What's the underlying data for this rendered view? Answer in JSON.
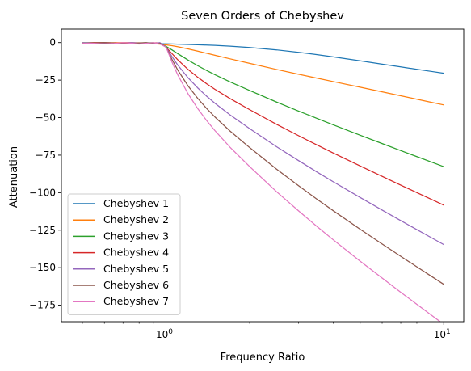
{
  "chart_data": {
    "type": "line",
    "title": "Seven Orders of Chebyshev",
    "xlabel": "Frequency Ratio",
    "ylabel": "Attenuation",
    "xscale": "log",
    "xlim": [
      0.42,
      11.8
    ],
    "ylim": [
      -186,
      9
    ],
    "x_major_ticks": [
      {
        "value": 1,
        "base": "10",
        "exp": "0"
      },
      {
        "value": 10,
        "base": "10",
        "exp": "1"
      }
    ],
    "x_minor_ticks": [
      0.5,
      0.6,
      0.7,
      0.8,
      0.9,
      2,
      3,
      4,
      5,
      6,
      7,
      8,
      9
    ],
    "y_ticks": [
      0,
      -25,
      -50,
      -75,
      -100,
      -125,
      -150,
      -175
    ],
    "y_tick_labels": [
      "0",
      "−25",
      "−50",
      "−75",
      "−100",
      "−125",
      "−150",
      "−175"
    ],
    "x": [
      0.5,
      0.55,
      0.6,
      0.65,
      0.7,
      0.75,
      0.8,
      0.85,
      0.9,
      0.95,
      1.0,
      1.05,
      1.1,
      1.2,
      1.3,
      1.4,
      1.5,
      1.7,
      2.0,
      2.5,
      3.0,
      3.5,
      4.0,
      5.0,
      6.0,
      7.0,
      8.0,
      9.0,
      10.0
    ],
    "series": [
      {
        "name": "Chebyshev 1",
        "color": "#1f77b4",
        "values": [
          -0.16,
          -0.22,
          -0.28,
          -0.34,
          -0.41,
          -0.48,
          -0.55,
          -0.62,
          -0.69,
          -0.77,
          -0.85,
          -0.93,
          -1.02,
          -1.2,
          -1.41,
          -1.63,
          -1.87,
          -2.39,
          -3.25,
          -4.84,
          -6.47,
          -8.04,
          -9.53,
          -12.15,
          -14.35,
          -16.2,
          -17.79,
          -19.18,
          -20.4
        ]
      },
      {
        "name": "Chebyshev 2",
        "color": "#ff7f0e",
        "values": [
          -0.51,
          -0.36,
          -0.2,
          -0.06,
          0,
          -0.04,
          -0.17,
          -0.4,
          -0.68,
          -1.05,
          -1.5,
          -2.05,
          -2.7,
          -4.18,
          -5.67,
          -7.1,
          -8.45,
          -10.83,
          -13.82,
          -17.9,
          -21.09,
          -23.73,
          -25.98,
          -29.73,
          -32.82,
          -35.44,
          -37.72,
          -39.73,
          -41.54
        ]
      },
      {
        "name": "Chebyshev 3",
        "color": "#2ca02c",
        "values": [
          -0.04,
          -0.18,
          -0.35,
          -0.51,
          -0.58,
          -0.54,
          -0.35,
          -0.07,
          -0.06,
          -0.81,
          -2.5,
          -4.85,
          -7.25,
          -11.64,
          -15.37,
          -18.58,
          -21.39,
          -26.16,
          -31.92,
          -39.62,
          -45.62,
          -50.57,
          -54.78,
          -61.72,
          -67.29,
          -71.98,
          -75.98,
          -79.51,
          -82.68
        ]
      },
      {
        "name": "Chebyshev 4",
        "color": "#d62728",
        "values": [
          -0.29,
          -0.04,
          0,
          -0.25,
          -0.62,
          -0.9,
          -0.9,
          -0.57,
          -0.14,
          -0.2,
          -3.01,
          -7.3,
          -11.3,
          -17.88,
          -23.08,
          -27.41,
          -31.12,
          -37.29,
          -44.67,
          -54.46,
          -62.04,
          -68.27,
          -73.56,
          -82.2,
          -89.15,
          -94.97,
          -99.96,
          -104.37,
          -108.3
        ]
      },
      {
        "name": "Chebyshev 5",
        "color": "#9467bd",
        "values": [
          -0.08,
          -0.36,
          -0.71,
          -0.65,
          -0.25,
          0,
          -0.3,
          -0.86,
          -0.69,
          -0.02,
          -3.01,
          -9.21,
          -14.76,
          -23.45,
          -30.18,
          -35.71,
          -40.41,
          -48.14,
          -57.3,
          -69.37,
          -78.64,
          -86.31,
          -92.73,
          -103.21,
          -111.61,
          -118.63,
          -124.63,
          -129.91,
          -134.63
        ]
      },
      {
        "name": "Chebyshev 6",
        "color": "#8c564b",
        "values": [
          -0.6,
          -0.23,
          0,
          -0.3,
          -0.87,
          -0.82,
          -0.2,
          -0.02,
          -0.91,
          -0.43,
          -3.01,
          -11.08,
          -18.06,
          -28.84,
          -37.12,
          -43.87,
          -49.58,
          -58.94,
          -69.94,
          -84.34,
          -95.37,
          -104.43,
          -112.03,
          -124.37,
          -134.21,
          -142.43,
          -149.44,
          -155.6,
          -161.11
        ]
      },
      {
        "name": "Chebyshev 7",
        "color": "#e377c2",
        "values": [
          -0.3,
          -0.52,
          -0.92,
          -0.54,
          -0.05,
          -0.42,
          -0.98,
          -0.42,
          -0.01,
          -0.95,
          -3.01,
          -12.86,
          -21.21,
          -34.09,
          -43.94,
          -51.94,
          -58.68,
          -69.72,
          -82.62,
          -99.36,
          -112.12,
          -122.62,
          -131.42,
          -145.64,
          -156.93,
          -166.38,
          -174.4,
          -181.48,
          -187.77
        ]
      }
    ],
    "legend": "lower-left",
    "grid": false
  }
}
